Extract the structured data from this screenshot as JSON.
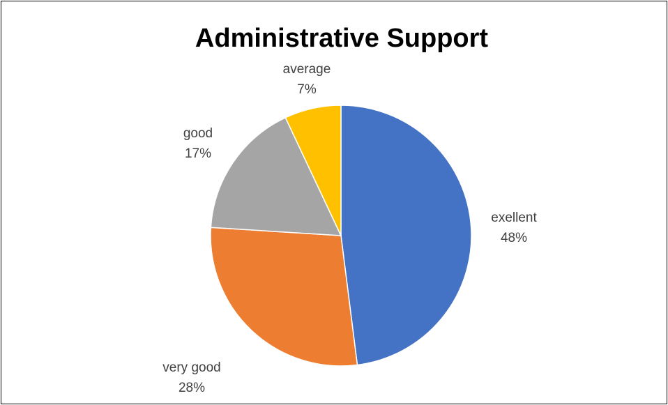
{
  "chart_data": {
    "type": "pie",
    "title": "Administrative Support",
    "categories": [
      "exellent",
      "very good",
      "good",
      "average"
    ],
    "values": [
      48,
      28,
      17,
      7
    ],
    "labels": [
      "48%",
      "28%",
      "17%",
      "7%"
    ],
    "colors": [
      "#4472C4",
      "#ED7D31",
      "#A5A5A5",
      "#FFC000"
    ],
    "start_angle_deg": 0,
    "direction": "clockwise",
    "legend": "none",
    "data_labels": "category and percent, outside"
  }
}
